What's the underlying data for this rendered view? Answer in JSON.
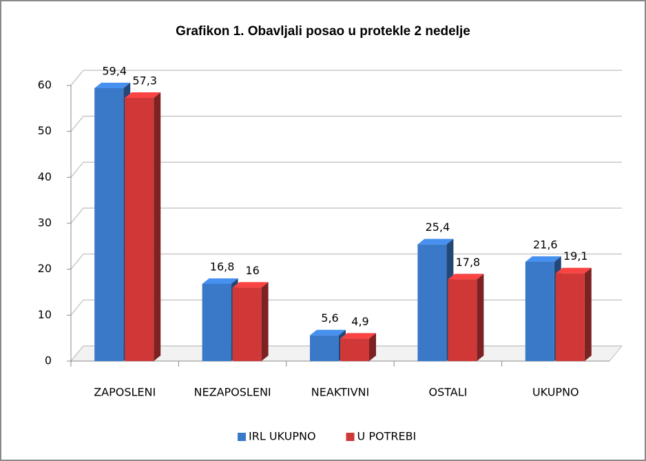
{
  "chart_data": {
    "type": "bar3d",
    "title": "Grafikon 1. Obavljali posao u protekle 2 nedelje",
    "categories": [
      "ZAPOSLENI",
      "NEZAPOSLENI",
      "NEAKTIVNI",
      "OSTALI",
      "UKUPNO"
    ],
    "series": [
      {
        "name": "IRL UKUPNO",
        "color": "#3a78c8",
        "values": [
          59.4,
          16.8,
          5.6,
          25.4,
          21.6
        ],
        "value_labels": [
          "59,4",
          "16,8",
          "5,6",
          "25,4",
          "21,6"
        ]
      },
      {
        "name": "U POTREBI",
        "color": "#d03838",
        "values": [
          57.3,
          16,
          4.9,
          17.8,
          19.1
        ],
        "value_labels": [
          "57,3",
          "16",
          "4,9",
          "17,8",
          "19,1"
        ]
      }
    ],
    "ylim": [
      0,
      60
    ],
    "yticks": [
      0,
      10,
      20,
      30,
      40,
      50,
      60
    ],
    "grid": true,
    "legend": "bottom"
  }
}
